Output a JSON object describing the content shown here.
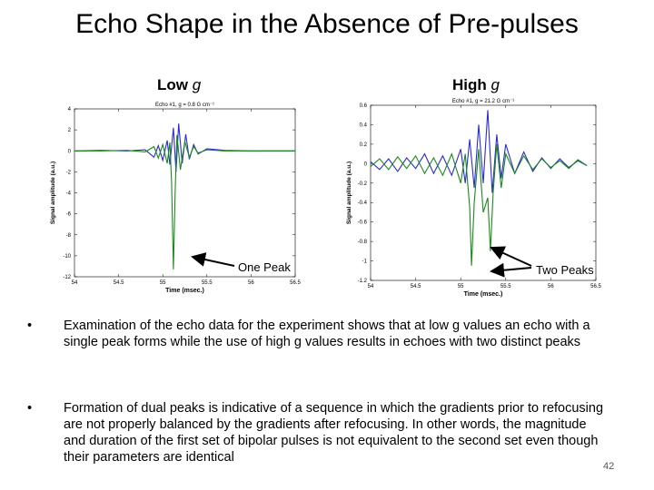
{
  "slide": {
    "title": "Echo Shape in the Absence of Pre-pulses",
    "page_number": "42"
  },
  "labels": {
    "low_prefix": "Low ",
    "low_italic": "g",
    "high_prefix": "High ",
    "high_italic": "g"
  },
  "callouts": {
    "one_peak": "One Peak",
    "two_peaks": "Two Peaks"
  },
  "bullets": [
    {
      "symbol": "•",
      "text": "Examination of the echo data for the experiment shows that at low g values an echo with a single peak forms while the use of high g values results in echoes with two distinct peaks"
    },
    {
      "symbol": "•",
      "text": "Formation of dual peaks is indicative of a sequence in which the gradients prior to refocusing are not properly balanced by the gradients after refocusing.  In other words, the magnitude and duration of the first set of bipolar pulses is not equivalent to the second set even though their parameters are identical"
    }
  ],
  "colors": {
    "series_blue": "#2b2bd6",
    "series_green": "#1a8a1a"
  },
  "chart_data": [
    {
      "type": "line",
      "title": "Echo #1, g = 0.8 G cm⁻¹",
      "xlabel": "Time (msec.)",
      "ylabel": "Signal amplitude (a.u.)",
      "xlim": [
        54,
        56.5
      ],
      "ylim": [
        -12,
        4
      ],
      "xticks": [
        54,
        54.5,
        55,
        55.5,
        56,
        56.5
      ],
      "yticks": [
        4,
        2,
        0,
        -2,
        -4,
        -6,
        -8,
        -10,
        -12
      ],
      "series": [
        {
          "name": "blue",
          "color": "#2b2bd6",
          "x": [
            54.0,
            54.3,
            54.6,
            54.8,
            54.9,
            54.95,
            55.0,
            55.05,
            55.08,
            55.12,
            55.15,
            55.18,
            55.22,
            55.26,
            55.3,
            55.35,
            55.4,
            55.5,
            55.7,
            56.0,
            56.5
          ],
          "y": [
            0,
            0.05,
            0,
            0.1,
            -0.6,
            0.5,
            -0.9,
            1.0,
            -1.3,
            2.2,
            -2.0,
            2.6,
            -1.2,
            1.6,
            -0.8,
            0.6,
            -0.3,
            0.2,
            0.05,
            0,
            0
          ]
        },
        {
          "name": "green",
          "color": "#1a8a1a",
          "x": [
            54.0,
            54.3,
            54.6,
            54.8,
            54.9,
            54.95,
            55.0,
            55.05,
            55.08,
            55.1,
            55.12,
            55.14,
            55.16,
            55.2,
            55.25,
            55.3,
            55.35,
            55.4,
            55.5,
            55.7,
            56.0,
            56.5
          ],
          "y": [
            0,
            0,
            0.05,
            -0.1,
            0.4,
            -0.7,
            0.6,
            -1.2,
            0.8,
            -3.0,
            -11.3,
            -4.0,
            1.5,
            -1.8,
            0.9,
            -0.6,
            0.4,
            -0.2,
            0.1,
            0,
            0,
            0
          ]
        }
      ]
    },
    {
      "type": "line",
      "title": "Echo #1, g = 21.2 G cm⁻¹",
      "xlabel": "Time (msec.)",
      "ylabel": "Signal amplitude (a.u.)",
      "xlim": [
        54,
        56.5
      ],
      "ylim": [
        -1.2,
        0.6
      ],
      "xticks": [
        54,
        54.5,
        55,
        55.5,
        56,
        56.5
      ],
      "yticks": [
        0.6,
        0.4,
        0.2,
        0,
        -0.2,
        -0.4,
        -0.6,
        -0.8,
        -1,
        -1.2
      ],
      "series": [
        {
          "name": "blue",
          "color": "#2b2bd6",
          "x": [
            54.0,
            54.1,
            54.2,
            54.3,
            54.4,
            54.5,
            54.6,
            54.7,
            54.8,
            54.9,
            55.0,
            55.05,
            55.1,
            55.15,
            55.2,
            55.25,
            55.3,
            55.35,
            55.4,
            55.45,
            55.5,
            55.6,
            55.7,
            55.8,
            55.9,
            56.0,
            56.1,
            56.2,
            56.3,
            56.4
          ],
          "y": [
            0.02,
            -0.06,
            0.05,
            -0.08,
            0.06,
            -0.05,
            0.1,
            -0.1,
            0.08,
            -0.12,
            0.15,
            -0.2,
            0.25,
            -0.25,
            0.4,
            -0.2,
            0.55,
            -0.3,
            0.3,
            -0.15,
            0.2,
            -0.1,
            0.12,
            -0.08,
            0.06,
            -0.05,
            0.05,
            -0.04,
            0.03,
            -0.02
          ]
        },
        {
          "name": "green",
          "color": "#1a8a1a",
          "x": [
            54.0,
            54.1,
            54.2,
            54.3,
            54.4,
            54.5,
            54.6,
            54.7,
            54.8,
            54.9,
            55.0,
            55.05,
            55.1,
            55.12,
            55.15,
            55.2,
            55.25,
            55.3,
            55.33,
            55.36,
            55.4,
            55.45,
            55.5,
            55.6,
            55.7,
            55.8,
            55.9,
            56.0,
            56.1,
            56.2,
            56.3,
            56.4
          ],
          "y": [
            -0.03,
            0.05,
            -0.06,
            0.07,
            -0.05,
            0.08,
            -0.1,
            0.06,
            -0.12,
            0.1,
            -0.2,
            0.1,
            -0.45,
            -1.05,
            -0.4,
            0.15,
            -0.5,
            -0.35,
            -0.9,
            -0.3,
            0.2,
            -0.25,
            0.1,
            -0.1,
            0.08,
            -0.06,
            0.05,
            -0.04,
            0.03,
            -0.05,
            0.04,
            -0.02
          ]
        }
      ]
    }
  ]
}
